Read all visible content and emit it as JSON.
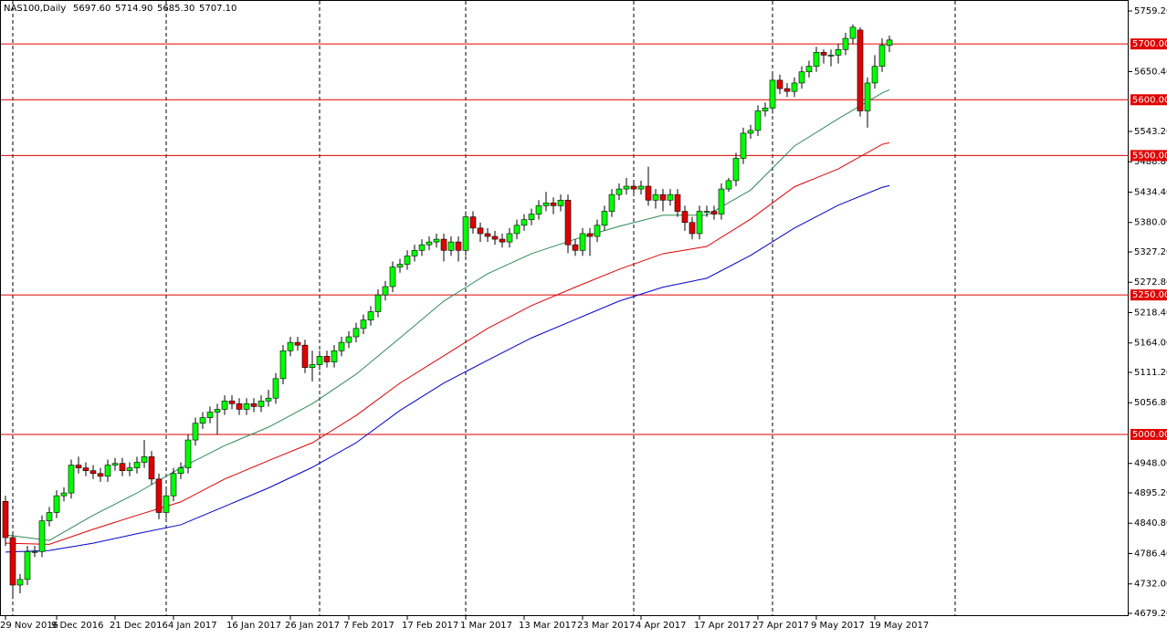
{
  "chart_data": {
    "type": "candlestick",
    "header": [
      "NAS100,Daily",
      "5697.60",
      "5714.90",
      "5685.30",
      "5707.10"
    ],
    "categories": [
      "29 Nov 2016",
      null,
      null,
      null,
      null,
      null,
      null,
      "9 Dec 2016",
      null,
      null,
      null,
      null,
      null,
      null,
      null,
      "21 Dec 2016",
      null,
      null,
      null,
      null,
      null,
      null,
      null,
      "4 Jan 2017",
      null,
      null,
      null,
      null,
      null,
      null,
      null,
      "16 Jan 2017",
      null,
      null,
      null,
      null,
      null,
      null,
      null,
      "26 Jan 2017",
      null,
      null,
      null,
      null,
      null,
      null,
      null,
      "7 Feb 2017",
      null,
      null,
      null,
      null,
      null,
      null,
      null,
      "17 Feb 2017",
      null,
      null,
      null,
      null,
      null,
      null,
      null,
      "1 Mar 2017",
      null,
      null,
      null,
      null,
      null,
      null,
      null,
      "13 Mar 2017",
      null,
      null,
      null,
      null,
      null,
      null,
      null,
      "23 Mar 2017",
      null,
      null,
      null,
      null,
      null,
      null,
      null,
      "4 Apr 2017",
      null,
      null,
      null,
      null,
      null,
      null,
      null,
      "17 Apr 2017",
      null,
      null,
      null,
      null,
      null,
      null,
      null,
      "27 Apr 2017",
      null,
      null,
      null,
      null,
      null,
      null,
      null,
      "9 May 2017",
      null,
      null,
      null,
      null,
      null,
      null,
      null,
      "19 May 2017",
      null,
      null
    ],
    "open": [
      4880,
      4815,
      4730,
      4740,
      4790,
      4790,
      4845,
      4860,
      4890,
      4895,
      4945,
      4940,
      4935,
      4930,
      4925,
      4945,
      4948,
      4935,
      4940,
      4950,
      4960,
      4920,
      4860,
      4890,
      4930,
      4940,
      4990,
      5020,
      5030,
      5040,
      5045,
      5060,
      5055,
      5045,
      5055,
      5050,
      5060,
      5065,
      5100,
      5150,
      5165,
      5160,
      5120,
      5125,
      5140,
      5130,
      5150,
      5165,
      5175,
      5190,
      5205,
      5220,
      5250,
      5265,
      5300,
      5305,
      5320,
      5330,
      5340,
      5345,
      5350,
      5330,
      5345,
      5330,
      5390,
      5370,
      5360,
      5355,
      5350,
      5345,
      5360,
      5375,
      5385,
      5395,
      5410,
      5415,
      5410,
      5420,
      5340,
      5330,
      5360,
      5355,
      5375,
      5400,
      5430,
      5440,
      5445,
      5440,
      5445,
      5420,
      5430,
      5420,
      5430,
      5400,
      5380,
      5360,
      5400,
      5400,
      5395,
      5440,
      5455,
      5495,
      5540,
      5545,
      5580,
      5585,
      5635,
      5620,
      5615,
      5630,
      5650,
      5660,
      5685,
      5680,
      5680,
      5690,
      5710,
      5725,
      5580,
      5630,
      5660,
      5697.6
    ],
    "high": [
      4890,
      4825,
      4750,
      4800,
      4800,
      4855,
      4870,
      4900,
      4905,
      4955,
      4960,
      4950,
      4945,
      4940,
      4955,
      4958,
      4958,
      4950,
      4960,
      4990,
      4970,
      4930,
      4900,
      4940,
      4950,
      5000,
      5030,
      5040,
      5050,
      5055,
      5070,
      5070,
      5065,
      5065,
      5065,
      5070,
      5080,
      5110,
      5160,
      5175,
      5175,
      5170,
      5150,
      5150,
      5150,
      5160,
      5175,
      5185,
      5200,
      5215,
      5230,
      5260,
      5275,
      5310,
      5315,
      5330,
      5340,
      5350,
      5355,
      5360,
      5360,
      5355,
      5355,
      5400,
      5400,
      5380,
      5370,
      5365,
      5360,
      5370,
      5385,
      5395,
      5405,
      5420,
      5435,
      5425,
      5430,
      5430,
      5350,
      5370,
      5370,
      5385,
      5410,
      5440,
      5450,
      5460,
      5455,
      5455,
      5480,
      5440,
      5440,
      5440,
      5440,
      5410,
      5390,
      5410,
      5410,
      5410,
      5450,
      5460,
      5505,
      5550,
      5555,
      5590,
      5595,
      5645,
      5645,
      5630,
      5640,
      5660,
      5670,
      5695,
      5690,
      5690,
      5700,
      5720,
      5735,
      5730,
      5640,
      5680,
      5710,
      5714.9
    ],
    "low": [
      4800,
      4705,
      4715,
      4730,
      4780,
      4780,
      4835,
      4850,
      4880,
      4885,
      4930,
      4925,
      4920,
      4915,
      4915,
      4935,
      4925,
      4925,
      4930,
      4940,
      4910,
      4848,
      4850,
      4880,
      4920,
      4930,
      4980,
      5010,
      5020,
      5000,
      5035,
      5045,
      5035,
      5035,
      5040,
      5040,
      5050,
      5055,
      5090,
      5140,
      5150,
      5110,
      5095,
      5115,
      5120,
      5120,
      5140,
      5155,
      5165,
      5180,
      5195,
      5210,
      5240,
      5255,
      5290,
      5295,
      5310,
      5320,
      5330,
      5335,
      5310,
      5320,
      5310,
      5320,
      5360,
      5345,
      5345,
      5340,
      5335,
      5335,
      5350,
      5365,
      5375,
      5385,
      5400,
      5395,
      5400,
      5325,
      5320,
      5320,
      5320,
      5345,
      5365,
      5390,
      5420,
      5430,
      5430,
      5430,
      5410,
      5405,
      5400,
      5410,
      5390,
      5365,
      5350,
      5350,
      5390,
      5385,
      5385,
      5435,
      5445,
      5485,
      5530,
      5535,
      5570,
      5575,
      5610,
      5605,
      5605,
      5620,
      5640,
      5650,
      5665,
      5660,
      5665,
      5680,
      5700,
      5570,
      5550,
      5620,
      5650,
      5685.3
    ],
    "close": [
      4815,
      4730,
      4740,
      4790,
      4790,
      4845,
      4860,
      4890,
      4895,
      4945,
      4940,
      4935,
      4930,
      4925,
      4945,
      4948,
      4935,
      4940,
      4950,
      4960,
      4920,
      4860,
      4890,
      4930,
      4940,
      4990,
      5020,
      5030,
      5040,
      5045,
      5060,
      5055,
      5045,
      5055,
      5050,
      5060,
      5065,
      5100,
      5150,
      5165,
      5160,
      5120,
      5125,
      5140,
      5130,
      5150,
      5165,
      5175,
      5190,
      5205,
      5220,
      5250,
      5265,
      5300,
      5305,
      5320,
      5330,
      5340,
      5345,
      5350,
      5330,
      5345,
      5330,
      5390,
      5370,
      5360,
      5355,
      5350,
      5345,
      5360,
      5375,
      5385,
      5395,
      5410,
      5415,
      5410,
      5420,
      5340,
      5330,
      5360,
      5355,
      5375,
      5400,
      5430,
      5440,
      5445,
      5440,
      5445,
      5420,
      5430,
      5420,
      5430,
      5400,
      5380,
      5360,
      5400,
      5400,
      5395,
      5440,
      5455,
      5495,
      5540,
      5545,
      5580,
      5585,
      5635,
      5620,
      5615,
      5630,
      5650,
      5660,
      5685,
      5680,
      5680,
      5690,
      5710,
      5730,
      5580,
      5630,
      5660,
      5697.6,
      5707.1
    ],
    "up_color": "#00ff00",
    "down_color": "#e00000",
    "series": [
      {
        "color": "#2e8b57",
        "x": [
          0,
          6,
          12,
          18,
          24,
          30,
          36,
          42,
          48,
          54,
          60,
          66,
          72,
          78,
          84,
          90,
          96,
          102,
          108,
          114,
          120,
          121
        ],
        "values": [
          4820,
          4810,
          4855,
          4895,
          4940,
          4980,
          5013,
          5055,
          5108,
          5173,
          5239,
          5288,
          5324,
          5350,
          5373,
          5393,
          5393,
          5438,
          5517,
          5566,
          5612,
          5618
        ]
      },
      {
        "color": "#e00000",
        "x": [
          0,
          6,
          12,
          18,
          24,
          30,
          36,
          42,
          48,
          54,
          60,
          66,
          72,
          78,
          84,
          90,
          96,
          102,
          108,
          114,
          120,
          121
        ],
        "values": [
          4805,
          4803,
          4830,
          4855,
          4879,
          4920,
          4953,
          4985,
          5034,
          5092,
          5141,
          5190,
          5231,
          5264,
          5296,
          5324,
          5337,
          5386,
          5444,
          5476,
          5520,
          5523
        ]
      },
      {
        "color": "#0000cc",
        "x": [
          0,
          6,
          12,
          18,
          24,
          30,
          36,
          42,
          48,
          54,
          60,
          66,
          72,
          78,
          84,
          90,
          96,
          102,
          108,
          114,
          120,
          121
        ],
        "values": [
          4789,
          4792,
          4805,
          4822,
          4838,
          4871,
          4904,
          4941,
          4985,
          5043,
          5092,
          5133,
          5173,
          5206,
          5239,
          5264,
          5280,
          5321,
          5370,
          5411,
          5443,
          5446
        ]
      }
    ],
    "ylim": [
      4679.2,
      5759.2
    ],
    "yticks": [
      {
        "value": 5759.2,
        "label": "5759.20"
      },
      {
        "value": 5650.4,
        "label": "5650.40"
      },
      {
        "value": 5543.2,
        "label": "5543.20"
      },
      {
        "value": 5488.8,
        "label": "5488.80"
      },
      {
        "value": 5434.4,
        "label": "5434.40"
      },
      {
        "value": 5380,
        "label": "5380.00"
      },
      {
        "value": 5327.2,
        "label": "5327.20"
      },
      {
        "value": 5272.8,
        "label": "5272.80"
      },
      {
        "value": 5218.4,
        "label": "5218.40"
      },
      {
        "value": 5164,
        "label": "5164.00"
      },
      {
        "value": 5111.2,
        "label": "5111.20"
      },
      {
        "value": 5056.8,
        "label": "5056.80"
      },
      {
        "value": 4948,
        "label": "4948.00"
      },
      {
        "value": 4895.2,
        "label": "4895.20"
      },
      {
        "value": 4840.8,
        "label": "4840.80"
      },
      {
        "value": 4786.4,
        "label": "4786.40"
      },
      {
        "value": 4732,
        "label": "4732.00"
      },
      {
        "value": 4679.2,
        "label": "4679.20"
      }
    ],
    "levels": [
      {
        "value": 5700,
        "label": "5700.00"
      },
      {
        "value": 5600,
        "label": "5600.00"
      },
      {
        "value": 5500,
        "label": "5500.00"
      },
      {
        "value": 5250,
        "label": "5250.00"
      },
      {
        "value": 5000,
        "label": "5000.00"
      }
    ],
    "level_color": "#e00000"
  }
}
